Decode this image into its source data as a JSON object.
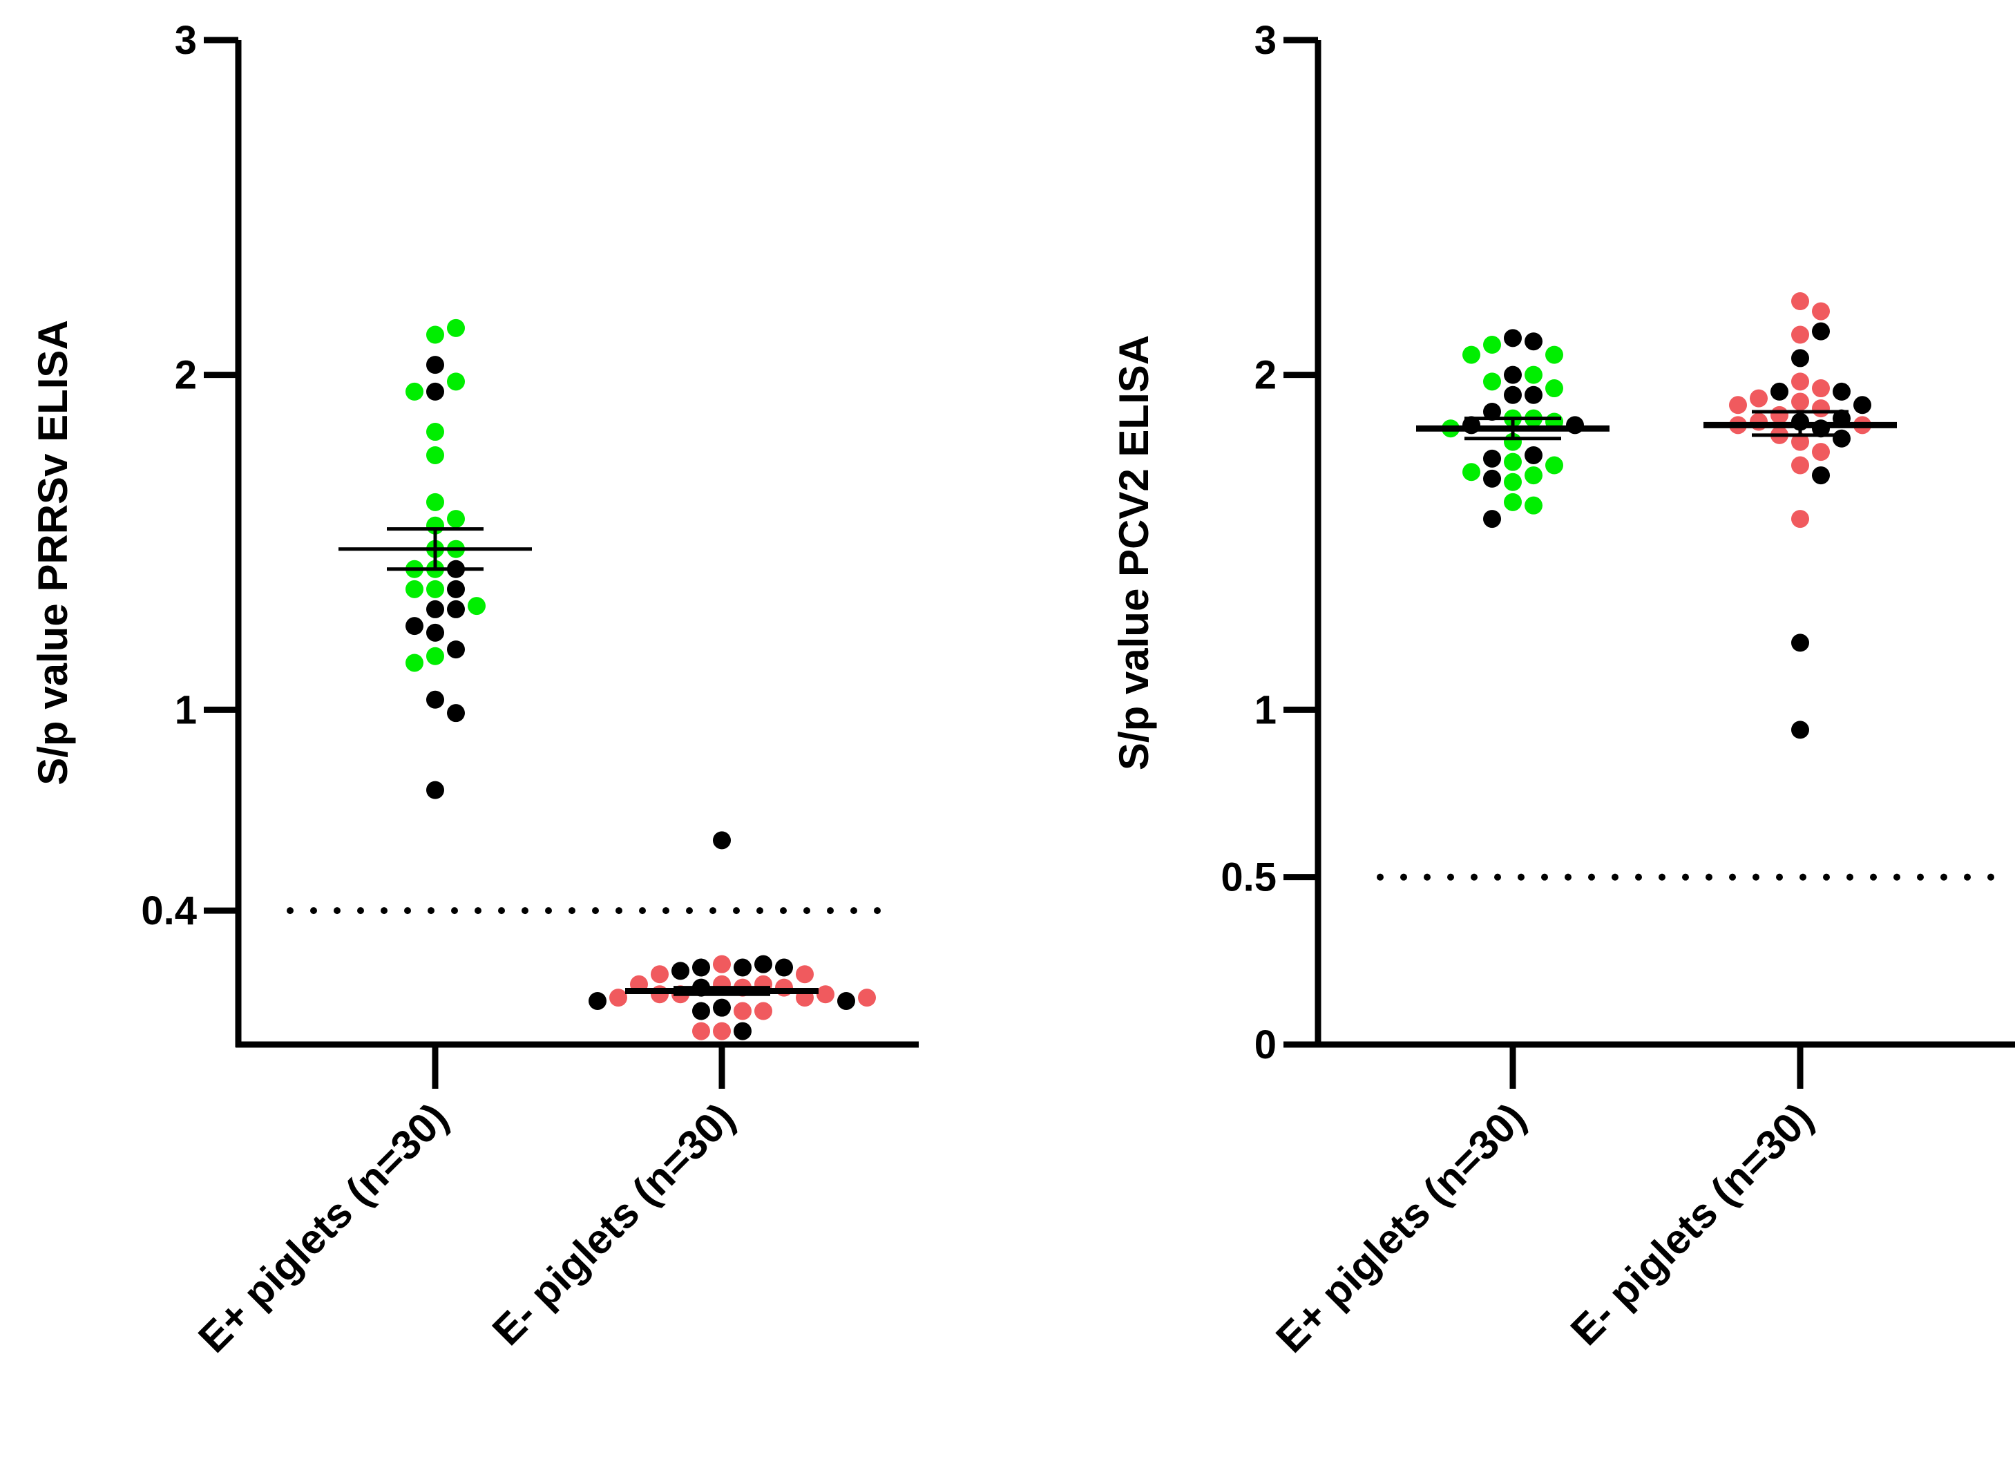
{
  "colors": {
    "green": "#00ee00",
    "red": "#f05a5e",
    "black": "#000000"
  },
  "chart_data": [
    {
      "type": "scatter",
      "title": "",
      "xlabel": "",
      "ylabel": "S/p value PRRSv ELISA",
      "ylim": [
        0,
        3
      ],
      "yticks": [
        {
          "value": 3,
          "label": "3"
        },
        {
          "value": 2,
          "label": "2"
        },
        {
          "value": 1,
          "label": "1"
        },
        {
          "value": 0.4,
          "label": "0.4"
        }
      ],
      "threshold": 0.4,
      "categories": [
        "E+ piglets (n=30)",
        "E- piglets (n=30)"
      ],
      "summary": [
        {
          "mean": 1.48,
          "sem_low": 1.42,
          "sem_high": 1.54
        },
        {
          "mean": 0.16,
          "sem_low": 0.15,
          "sem_high": 0.17
        }
      ],
      "series": [
        {
          "name": "E+ piglets (n=30)",
          "points": [
            {
              "y": 2.12,
              "color": "green"
            },
            {
              "y": 2.14,
              "color": "green"
            },
            {
              "y": 2.03,
              "color": "black"
            },
            {
              "y": 1.98,
              "color": "green"
            },
            {
              "y": 1.95,
              "color": "black"
            },
            {
              "y": 1.95,
              "color": "green"
            },
            {
              "y": 1.83,
              "color": "green"
            },
            {
              "y": 1.76,
              "color": "green"
            },
            {
              "y": 1.62,
              "color": "green"
            },
            {
              "y": 1.57,
              "color": "green"
            },
            {
              "y": 1.55,
              "color": "green"
            },
            {
              "y": 1.48,
              "color": "green"
            },
            {
              "y": 1.48,
              "color": "green"
            },
            {
              "y": 1.42,
              "color": "green"
            },
            {
              "y": 1.42,
              "color": "black"
            },
            {
              "y": 1.42,
              "color": "green"
            },
            {
              "y": 1.36,
              "color": "green"
            },
            {
              "y": 1.36,
              "color": "black"
            },
            {
              "y": 1.36,
              "color": "green"
            },
            {
              "y": 1.31,
              "color": "green"
            },
            {
              "y": 1.3,
              "color": "black"
            },
            {
              "y": 1.3,
              "color": "black"
            },
            {
              "y": 1.25,
              "color": "black"
            },
            {
              "y": 1.23,
              "color": "black"
            },
            {
              "y": 1.18,
              "color": "black"
            },
            {
              "y": 1.16,
              "color": "green"
            },
            {
              "y": 1.14,
              "color": "green"
            },
            {
              "y": 1.03,
              "color": "black"
            },
            {
              "y": 0.99,
              "color": "black"
            },
            {
              "y": 0.76,
              "color": "black"
            }
          ]
        },
        {
          "name": "E- piglets (n=30)",
          "points": [
            {
              "y": 0.61,
              "color": "black"
            },
            {
              "y": 0.24,
              "color": "red"
            },
            {
              "y": 0.23,
              "color": "black"
            },
            {
              "y": 0.23,
              "color": "black"
            },
            {
              "y": 0.24,
              "color": "black"
            },
            {
              "y": 0.22,
              "color": "black"
            },
            {
              "y": 0.23,
              "color": "black"
            },
            {
              "y": 0.21,
              "color": "red"
            },
            {
              "y": 0.21,
              "color": "red"
            },
            {
              "y": 0.18,
              "color": "red"
            },
            {
              "y": 0.18,
              "color": "red"
            },
            {
              "y": 0.17,
              "color": "red"
            },
            {
              "y": 0.17,
              "color": "black"
            },
            {
              "y": 0.17,
              "color": "red"
            },
            {
              "y": 0.18,
              "color": "red"
            },
            {
              "y": 0.15,
              "color": "red"
            },
            {
              "y": 0.15,
              "color": "red"
            },
            {
              "y": 0.14,
              "color": "red"
            },
            {
              "y": 0.15,
              "color": "red"
            },
            {
              "y": 0.14,
              "color": "red"
            },
            {
              "y": 0.13,
              "color": "black"
            },
            {
              "y": 0.13,
              "color": "black"
            },
            {
              "y": 0.14,
              "color": "red"
            },
            {
              "y": 0.11,
              "color": "black"
            },
            {
              "y": 0.1,
              "color": "red"
            },
            {
              "y": 0.1,
              "color": "black"
            },
            {
              "y": 0.1,
              "color": "red"
            },
            {
              "y": 0.04,
              "color": "red"
            },
            {
              "y": 0.04,
              "color": "black"
            },
            {
              "y": 0.04,
              "color": "red"
            }
          ]
        }
      ]
    },
    {
      "type": "scatter",
      "title": "",
      "xlabel": "",
      "ylabel": "S/p value PCV2 ELISA",
      "ylim": [
        0,
        3
      ],
      "yticks": [
        {
          "value": 3,
          "label": "3"
        },
        {
          "value": 2,
          "label": "2"
        },
        {
          "value": 1,
          "label": "1"
        },
        {
          "value": 0.5,
          "label": "0.5"
        },
        {
          "value": 0,
          "label": "0"
        }
      ],
      "threshold": 0.5,
      "categories": [
        "E+ piglets (n=30)",
        "E- piglets (n=30)"
      ],
      "summary": [
        {
          "mean": 1.84,
          "sem_low": 1.81,
          "sem_high": 1.87
        },
        {
          "mean": 1.85,
          "sem_low": 1.82,
          "sem_high": 1.89
        }
      ],
      "series": [
        {
          "name": "E+ piglets (n=30)",
          "points": [
            {
              "y": 2.11,
              "color": "black"
            },
            {
              "y": 2.1,
              "color": "black"
            },
            {
              "y": 2.09,
              "color": "green"
            },
            {
              "y": 2.06,
              "color": "green"
            },
            {
              "y": 2.06,
              "color": "green"
            },
            {
              "y": 2.0,
              "color": "black"
            },
            {
              "y": 2.0,
              "color": "green"
            },
            {
              "y": 1.98,
              "color": "green"
            },
            {
              "y": 1.96,
              "color": "green"
            },
            {
              "y": 1.94,
              "color": "black"
            },
            {
              "y": 1.94,
              "color": "black"
            },
            {
              "y": 1.89,
              "color": "black"
            },
            {
              "y": 1.87,
              "color": "green"
            },
            {
              "y": 1.87,
              "color": "green"
            },
            {
              "y": 1.86,
              "color": "green"
            },
            {
              "y": 1.85,
              "color": "black"
            },
            {
              "y": 1.85,
              "color": "black"
            },
            {
              "y": 1.84,
              "color": "green"
            },
            {
              "y": 1.8,
              "color": "green"
            },
            {
              "y": 1.76,
              "color": "black"
            },
            {
              "y": 1.75,
              "color": "black"
            },
            {
              "y": 1.74,
              "color": "green"
            },
            {
              "y": 1.73,
              "color": "green"
            },
            {
              "y": 1.71,
              "color": "green"
            },
            {
              "y": 1.7,
              "color": "green"
            },
            {
              "y": 1.69,
              "color": "black"
            },
            {
              "y": 1.68,
              "color": "green"
            },
            {
              "y": 1.62,
              "color": "green"
            },
            {
              "y": 1.61,
              "color": "green"
            },
            {
              "y": 1.57,
              "color": "black"
            }
          ]
        },
        {
          "name": "E- piglets (n=30)",
          "points": [
            {
              "y": 2.22,
              "color": "red"
            },
            {
              "y": 2.19,
              "color": "red"
            },
            {
              "y": 2.12,
              "color": "red"
            },
            {
              "y": 2.13,
              "color": "black"
            },
            {
              "y": 2.05,
              "color": "black"
            },
            {
              "y": 1.98,
              "color": "red"
            },
            {
              "y": 1.96,
              "color": "red"
            },
            {
              "y": 1.95,
              "color": "black"
            },
            {
              "y": 1.95,
              "color": "black"
            },
            {
              "y": 1.93,
              "color": "red"
            },
            {
              "y": 1.92,
              "color": "red"
            },
            {
              "y": 1.91,
              "color": "black"
            },
            {
              "y": 1.91,
              "color": "red"
            },
            {
              "y": 1.9,
              "color": "red"
            },
            {
              "y": 1.88,
              "color": "red"
            },
            {
              "y": 1.87,
              "color": "black"
            },
            {
              "y": 1.86,
              "color": "black"
            },
            {
              "y": 1.86,
              "color": "red"
            },
            {
              "y": 1.85,
              "color": "red"
            },
            {
              "y": 1.85,
              "color": "red"
            },
            {
              "y": 1.84,
              "color": "black"
            },
            {
              "y": 1.82,
              "color": "red"
            },
            {
              "y": 1.81,
              "color": "black"
            },
            {
              "y": 1.8,
              "color": "red"
            },
            {
              "y": 1.77,
              "color": "red"
            },
            {
              "y": 1.73,
              "color": "red"
            },
            {
              "y": 1.7,
              "color": "black"
            },
            {
              "y": 1.57,
              "color": "red"
            },
            {
              "y": 1.2,
              "color": "black"
            },
            {
              "y": 0.94,
              "color": "black"
            }
          ]
        }
      ]
    }
  ]
}
